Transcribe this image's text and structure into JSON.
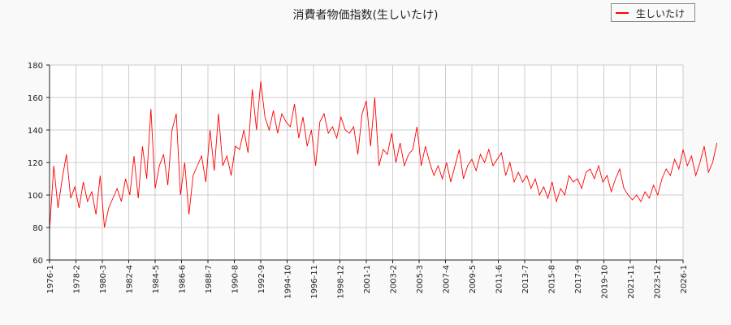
{
  "chart_data": {
    "type": "line",
    "title": "消費者物価指数(生しいたけ)",
    "xlabel": "",
    "ylabel": "",
    "ylim": [
      60,
      180
    ],
    "yticks": [
      60,
      80,
      100,
      120,
      140,
      160,
      180
    ],
    "xticks": [
      "1976-1",
      "1978-2",
      "1980-3",
      "1982-4",
      "1984-5",
      "1986-6",
      "1988-7",
      "1990-8",
      "1992-9",
      "1994-10",
      "1996-11",
      "1998-12",
      "2001-1",
      "2003-2",
      "2005-3",
      "2007-4",
      "2009-5",
      "2011-6",
      "2013-7",
      "2015-8",
      "2017-9",
      "2019-10",
      "2021-11",
      "2023-12",
      "2026-1"
    ],
    "grid": true,
    "legend_position": "top-right",
    "x_start": "1976-1",
    "x_step_months": 4,
    "series": [
      {
        "name": "生しいたけ",
        "color": "#ff0000",
        "values": [
          78,
          118,
          92,
          110,
          125,
          98,
          105,
          92,
          108,
          96,
          102,
          88,
          112,
          80,
          92,
          98,
          104,
          96,
          110,
          100,
          124,
          98,
          130,
          110,
          153,
          104,
          118,
          125,
          106,
          140,
          150,
          100,
          120,
          88,
          112,
          118,
          124,
          108,
          140,
          115,
          150,
          118,
          124,
          112,
          130,
          128,
          140,
          126,
          165,
          140,
          170,
          148,
          140,
          152,
          138,
          150,
          145,
          142,
          156,
          135,
          148,
          130,
          140,
          118,
          145,
          150,
          138,
          142,
          135,
          148,
          140,
          138,
          142,
          125,
          150,
          158,
          130,
          160,
          118,
          128,
          125,
          138,
          120,
          132,
          118,
          125,
          128,
          142,
          118,
          130,
          120,
          112,
          118,
          110,
          120,
          108,
          118,
          128,
          110,
          118,
          122,
          115,
          125,
          120,
          128,
          118,
          122,
          126,
          112,
          120,
          108,
          114,
          108,
          112,
          104,
          110,
          100,
          105,
          98,
          108,
          96,
          104,
          100,
          112,
          108,
          110,
          104,
          114,
          116,
          110,
          118,
          108,
          112,
          102,
          110,
          116,
          104,
          100,
          97,
          100,
          96,
          102,
          98,
          106,
          100,
          110,
          116,
          112,
          122,
          116,
          128,
          118,
          124,
          112,
          120,
          130,
          114,
          120,
          132
        ]
      }
    ]
  }
}
